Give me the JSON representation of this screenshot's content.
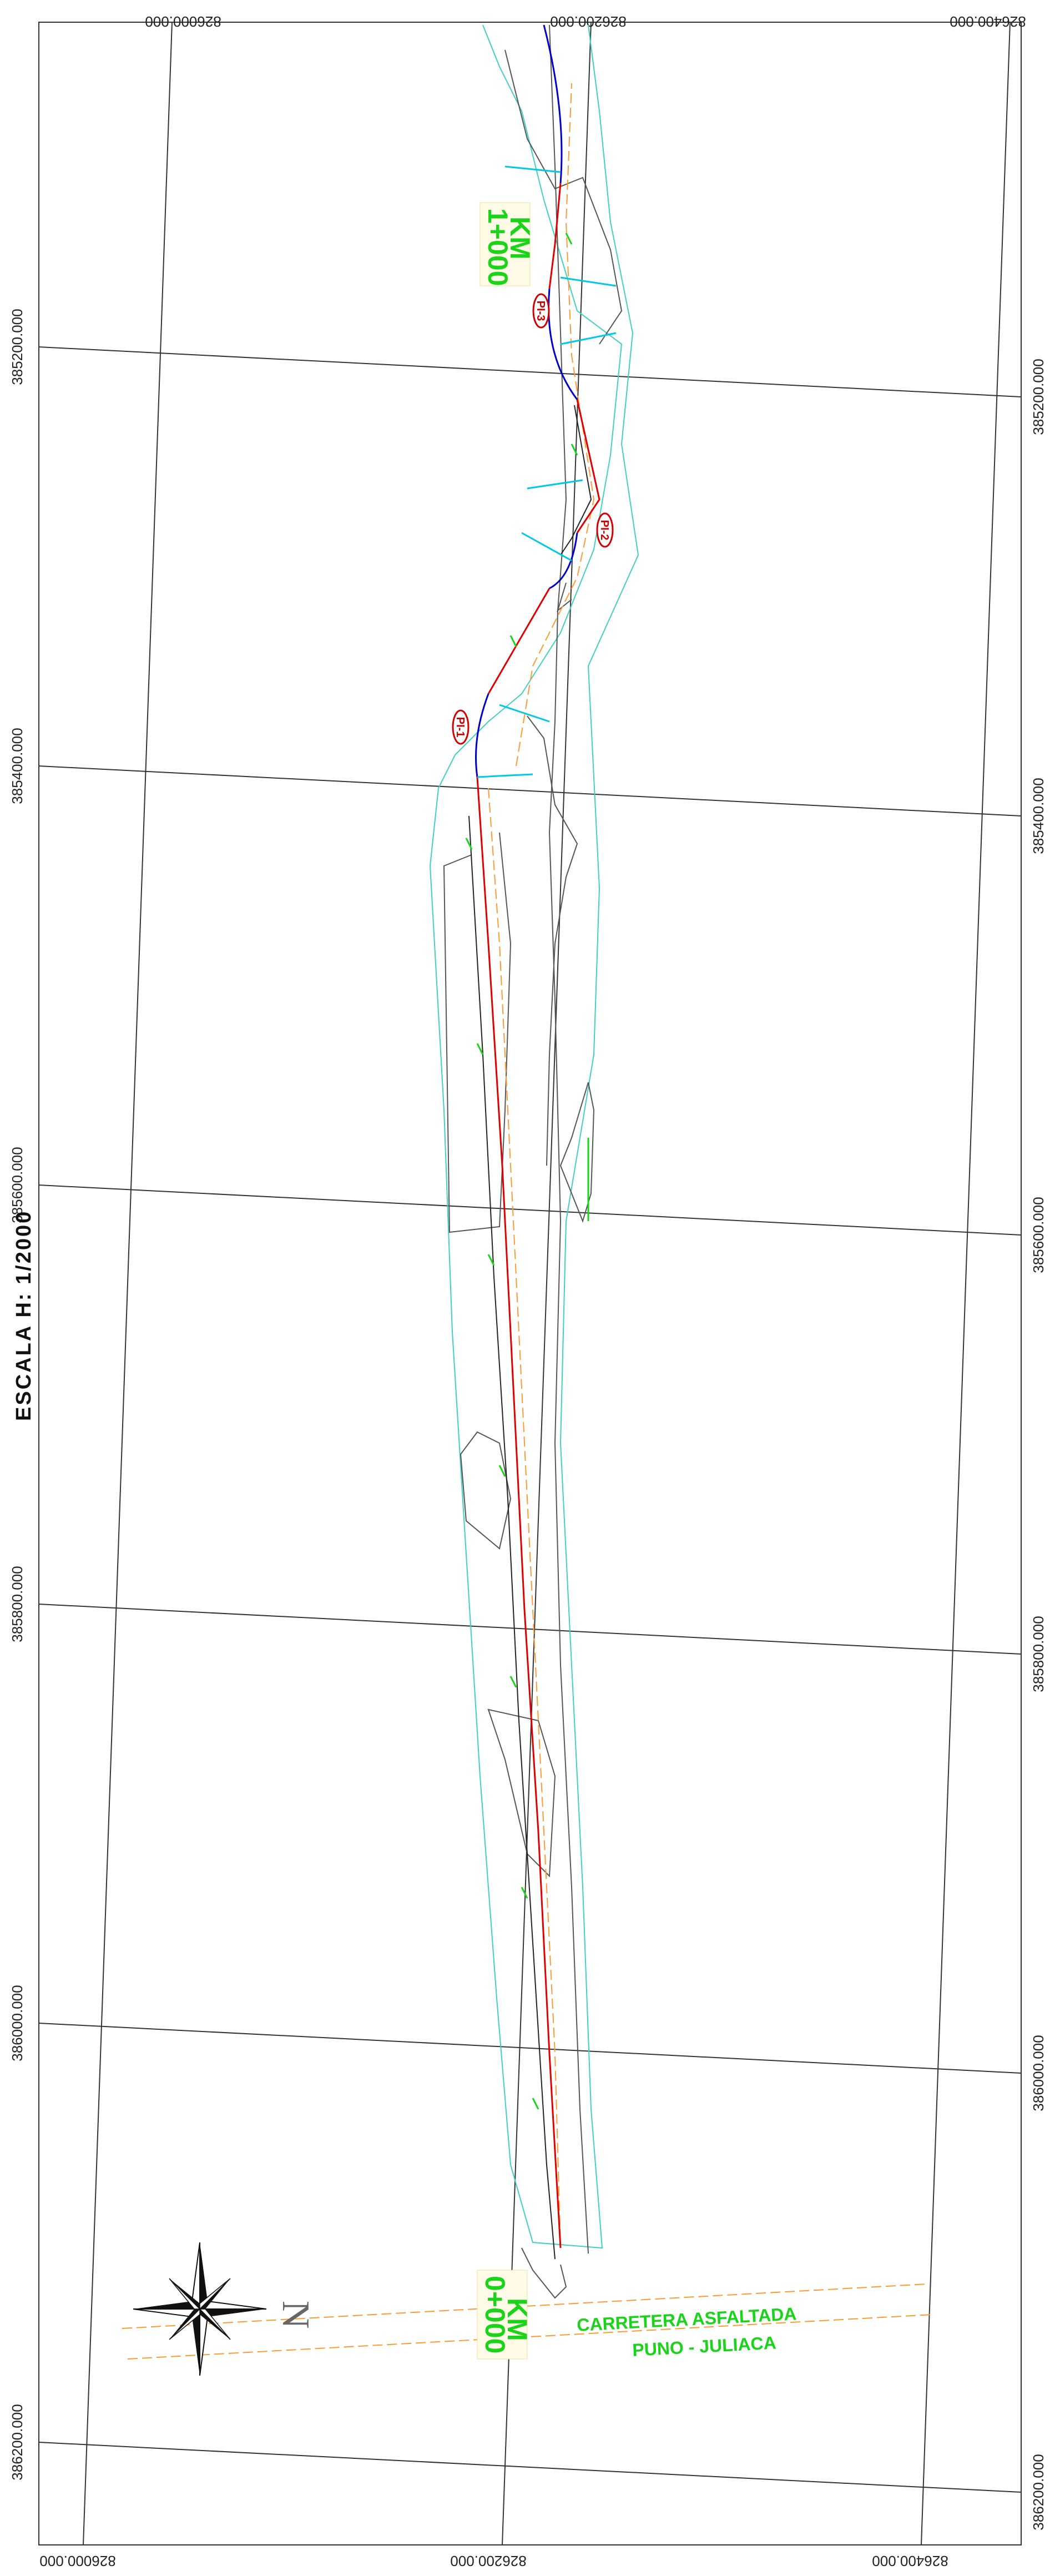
{
  "scale_label": "ESCALA H: 1/2000",
  "north_label": "N",
  "grid": {
    "easting_labels": [
      "826200.000",
      "826400.000",
      "826200.000",
      "826000.000"
    ],
    "northing_labels": [
      "385200.000",
      "385400.000",
      "385600.000",
      "385800.000",
      "386000.000",
      "386200.000"
    ]
  },
  "stations": {
    "km_0": {
      "line1": "KM",
      "line2": "0+000"
    },
    "km_1": {
      "line1": "KM",
      "line2": "1+000"
    }
  },
  "pi_points": [
    "PI-1",
    "PI-2",
    "PI-3"
  ],
  "road": {
    "line1": "CARRETERA ASFALTADA",
    "line2": "PUNO - JULIACA"
  },
  "colors": {
    "centerline": "#e00000",
    "boundary": "#40d0c0",
    "offset": "#ff9933",
    "curve": "#0000cc",
    "terrain": "#555555",
    "grid": "#333333",
    "label_green": "#19d419",
    "cross_section": "#00c8e6"
  }
}
